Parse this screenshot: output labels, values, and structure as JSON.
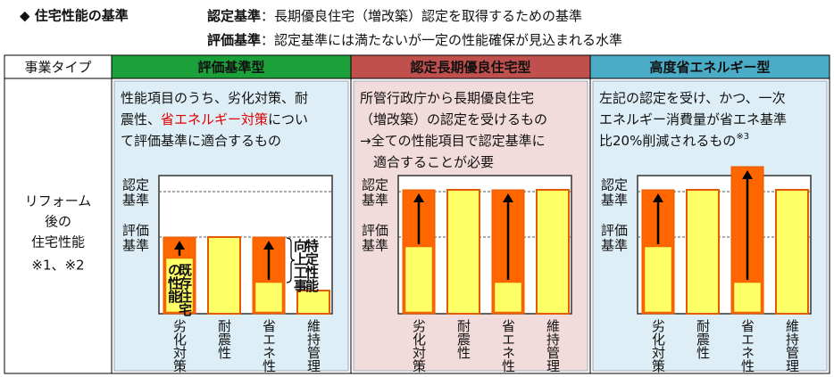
{
  "header": {
    "title": "◆ 住宅性能の基準",
    "definitions": [
      {
        "term": "認定基準",
        "separator": "：",
        "text": "長期優良住宅（増改築）認定を取得するための基準"
      },
      {
        "term": "評価基準",
        "separator": "：",
        "text": "認定基準には満たないが一定の性能確保が見込まれる水準"
      }
    ]
  },
  "table": {
    "row_header": "事業タイプ",
    "row_label": [
      "リフォーム",
      "後の",
      "住宅性能"
    ],
    "row_note": "※1、※2",
    "columns": [
      {
        "title": "評価基準型",
        "color": "#1ba03a",
        "background": "#ddeef6",
        "description": [
          [
            {
              "text": "性能項目のうち、劣化対策、耐"
            }
          ],
          [
            {
              "text": "震性、"
            },
            {
              "text": "省エネルギー対策",
              "style": "red"
            },
            {
              "text": "につい"
            }
          ],
          [
            {
              "text": "て評価基準に適合するもの"
            }
          ]
        ]
      },
      {
        "title": "認定長期優良住宅型",
        "color": "#c0504d",
        "background": "#f2dcdb",
        "description": [
          [
            {
              "text": "所管行政庁から長期優良住宅"
            }
          ],
          [
            {
              "text": "（増改築）の認定を受けるもの"
            }
          ],
          [
            {
              "text": "→全ての性能項目で認定基準に"
            }
          ],
          [
            {
              "text": "　適合することが必要"
            }
          ]
        ]
      },
      {
        "title": "高度省エネルギー型",
        "color": "#4aacc6",
        "background": "#ddeef6",
        "description": [
          [
            {
              "text": "左記の認定を受け、かつ、一次"
            }
          ],
          [
            {
              "text": "エネルギー消費量が省エネ基準"
            }
          ],
          [
            {
              "text": "比20%削減されるもの"
            },
            {
              "text": "※3",
              "style": "sup"
            }
          ]
        ]
      }
    ]
  },
  "chart": {
    "levels": [
      [
        "認定",
        "基準"
      ],
      [
        "評価",
        "基準"
      ]
    ],
    "categories": [
      "劣化対策",
      "耐震性",
      "省エネ性",
      "維持管理"
    ],
    "existing_label": [
      "既存住宅",
      "の性能"
    ],
    "improvement_label": [
      "特定性能",
      "向上工事"
    ]
  }
}
